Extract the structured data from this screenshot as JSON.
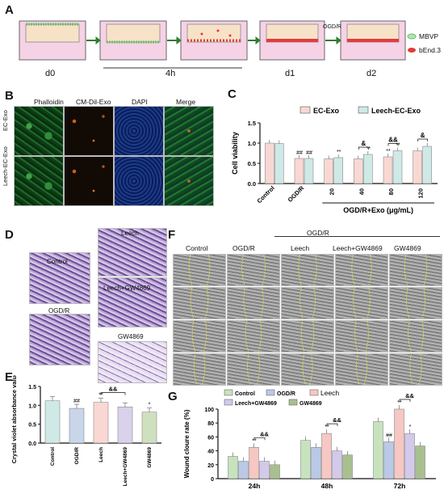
{
  "panels": {
    "A": {
      "label": "A",
      "days": [
        "d0",
        "4h",
        "d1",
        "d2"
      ],
      "treatment": "OGD/R",
      "legend": [
        {
          "name": "MBVP",
          "color": "#6abf69"
        },
        {
          "name": "bEnd.3",
          "color": "#e23b3b"
        }
      ]
    },
    "B": {
      "label": "B",
      "columns": [
        "Phalloidin",
        "CM-Dil-Exo",
        "DAPI",
        "Merge"
      ],
      "rows": [
        "EC-Exo",
        "Leech-EC-Exo"
      ]
    },
    "D": {
      "label": "D",
      "images": [
        "Control",
        "Leech",
        "Leech+GW4869",
        "OGD/R",
        "GW4869"
      ]
    },
    "F": {
      "label": "F",
      "header_group": "OGD/R",
      "columns": [
        "Control",
        "OGD/R",
        "Leech",
        "Leech+GW4869",
        "GW4869"
      ]
    }
  },
  "chart_data": [
    {
      "panel": "C",
      "type": "bar",
      "title": "",
      "ylabel": "Cell viability",
      "xlabel": "OGD/R+Exo (μg/mL)",
      "ylim": [
        0,
        1.5
      ],
      "yticks": [
        "0.0",
        "0.5",
        "1.0",
        "1.5"
      ],
      "categories": [
        "Control",
        "OGD/R",
        "20",
        "40",
        "80",
        "120"
      ],
      "legend_placement": "top",
      "series": [
        {
          "name": "EC-Exo",
          "color": "#f9d8d3",
          "values": [
            1.0,
            0.62,
            0.61,
            0.61,
            0.66,
            0.81
          ]
        },
        {
          "name": "Leech-EC-Exo",
          "color": "#cfe9e6",
          "values": [
            0.99,
            0.62,
            0.64,
            0.72,
            0.81,
            0.92
          ]
        }
      ],
      "annotations": [
        {
          "text": "##",
          "category": 1,
          "series": 0
        },
        {
          "text": "##",
          "category": 1,
          "series": 1
        },
        {
          "text": "**",
          "category": 2,
          "series": 1
        },
        {
          "text": "**",
          "category": 3,
          "series": 1
        },
        {
          "text": "**",
          "category": 4,
          "series": 0
        },
        {
          "text": "**",
          "category": 4,
          "series": 1
        },
        {
          "text": "&",
          "category": 3,
          "bracket": true
        },
        {
          "text": "&&",
          "category": 4,
          "bracket": true
        },
        {
          "text": "&",
          "category": 5,
          "bracket": true
        }
      ]
    },
    {
      "panel": "E",
      "type": "bar",
      "title": "",
      "ylabel": "Crystal violet absorbance value",
      "ylim": [
        0,
        1.5
      ],
      "yticks": [
        "0.0",
        "0.5",
        "1.0",
        "1.5"
      ],
      "categories": [
        "Control",
        "OGD/R",
        "Leech",
        "Leech+GW4869",
        "GW4869"
      ],
      "colors": [
        "#cfe9e6",
        "#c9d6ea",
        "#f9d8d3",
        "#d9d2ea",
        "#cfe0bf"
      ],
      "values": [
        1.12,
        0.92,
        1.08,
        0.96,
        0.82
      ],
      "annotations": [
        {
          "text": "##",
          "category": 1
        },
        {
          "text": "**",
          "category": 2
        },
        {
          "text": "&&",
          "category": 3,
          "bracket": true
        },
        {
          "text": "*",
          "category": 4
        }
      ]
    },
    {
      "panel": "G",
      "type": "bar",
      "title": "",
      "ylabel": "Wound cloure rate (%)",
      "ylim": [
        0,
        100
      ],
      "yticks": [
        "0",
        "20",
        "40",
        "60",
        "80",
        "100"
      ],
      "categories": [
        "24h",
        "48h",
        "72h"
      ],
      "legend_placement": "top",
      "series": [
        {
          "name": "Control",
          "color": "#c7e3bd",
          "values": [
            32,
            55,
            82
          ]
        },
        {
          "name": "OGD/R",
          "color": "#b9c9e6",
          "values": [
            25,
            45,
            53
          ]
        },
        {
          "name": "Leech",
          "color": "#f6c7c3",
          "values": [
            45,
            65,
            100
          ]
        },
        {
          "name": "Leech+GW4869",
          "color": "#d3c9ea",
          "values": [
            25,
            40,
            65
          ]
        },
        {
          "name": "GW4869",
          "color": "#a8c08f",
          "values": [
            20,
            34,
            47
          ]
        }
      ],
      "annotations": [
        {
          "text": "**",
          "category": 0,
          "series": 2
        },
        {
          "text": "&&",
          "category": 0,
          "bracket": true
        },
        {
          "text": "**",
          "category": 1,
          "series": 2
        },
        {
          "text": "&&",
          "category": 1,
          "bracket": true
        },
        {
          "text": "**",
          "category": 2,
          "series": 2
        },
        {
          "text": "##",
          "category": 2,
          "series": 1
        },
        {
          "text": "*",
          "category": 2,
          "series": 3
        },
        {
          "text": "&&",
          "category": 2,
          "bracket": true
        }
      ]
    }
  ],
  "chart_labels": {
    "C": "C",
    "E": "E",
    "G": "G"
  }
}
